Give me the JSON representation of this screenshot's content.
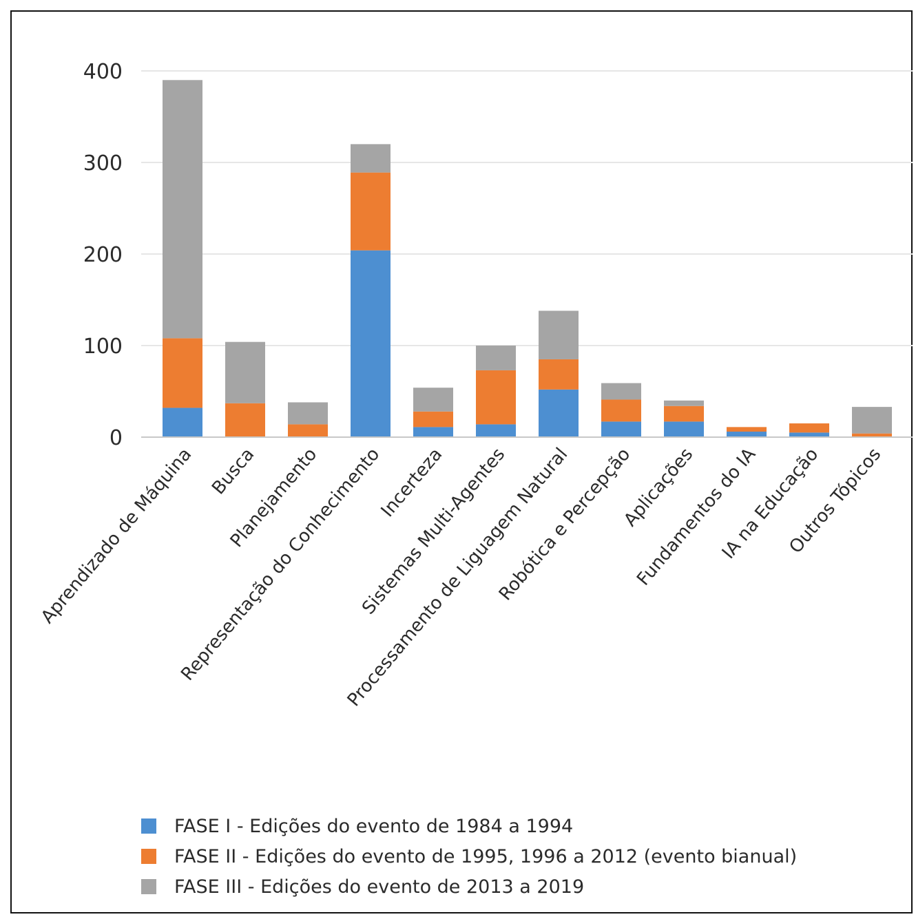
{
  "chart_data": {
    "type": "bar",
    "stacked": true,
    "categories": [
      "Aprendizado de Máquina",
      "Busca",
      "Planejamento",
      "Representação do Conhecimento",
      "Incerteza",
      "Sistemas Multi-Agentes",
      "Processamento de Liguagem Natural",
      "Robótica e Percepção",
      "Aplicações",
      "Fundamentos do IA",
      "IA na Educação",
      "Outros Tópicos"
    ],
    "series": [
      {
        "name": "FASE I - Edições do evento de 1984 a 1994",
        "color": "#4d8fd1",
        "values": [
          32,
          0,
          0,
          204,
          11,
          14,
          52,
          17,
          17,
          6,
          5,
          0
        ]
      },
      {
        "name": "FASE II - Edições do evento de 1995, 1996 a 2012 (evento bianual)",
        "color": "#ed7d31",
        "values": [
          76,
          37,
          14,
          85,
          17,
          59,
          33,
          24,
          17,
          5,
          10,
          4
        ]
      },
      {
        "name": "FASE III - Edições do evento de 2013 a 2019",
        "color": "#a5a5a5",
        "values": [
          282,
          67,
          24,
          31,
          26,
          27,
          53,
          18,
          6,
          0,
          0,
          29
        ]
      }
    ],
    "yticks": [
      0,
      100,
      200,
      300,
      400
    ],
    "ylim": [
      0,
      400
    ],
    "grid": true,
    "legend_position": "bottom"
  }
}
